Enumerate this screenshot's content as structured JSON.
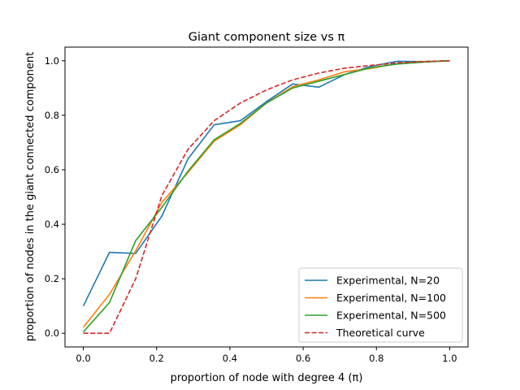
{
  "chart_data": {
    "type": "line",
    "title": "Giant component size vs π",
    "xlabel": "proportion of node with degree 4 (π)",
    "ylabel": "proportion of nodes in the giant connected component",
    "xlim": [
      -0.05,
      1.05
    ],
    "ylim": [
      -0.05,
      1.05
    ],
    "xticks": [
      0.0,
      0.2,
      0.4,
      0.6,
      0.8,
      1.0
    ],
    "yticks": [
      0.0,
      0.2,
      0.4,
      0.6,
      0.8,
      1.0
    ],
    "xtick_labels": [
      "0.0",
      "0.2",
      "0.4",
      "0.6",
      "0.8",
      "1.0"
    ],
    "ytick_labels": [
      "0.0",
      "0.2",
      "0.4",
      "0.6",
      "0.8",
      "1.0"
    ],
    "grid": false,
    "legend_position": "lower-right",
    "x": [
      0.0,
      0.0714,
      0.1429,
      0.2143,
      0.2857,
      0.3571,
      0.4286,
      0.5,
      0.5714,
      0.6429,
      0.7143,
      0.7857,
      0.8571,
      0.9286,
      1.0
    ],
    "series": [
      {
        "name": "Experimental, N=20",
        "color": "#1f77b4",
        "dash": "solid",
        "values": [
          0.1,
          0.297,
          0.293,
          0.43,
          0.64,
          0.765,
          0.78,
          0.85,
          0.915,
          0.903,
          0.95,
          0.98,
          0.998,
          0.997,
          1.0
        ]
      },
      {
        "name": "Experimental, N=100",
        "color": "#ff7f0e",
        "dash": "solid",
        "values": [
          0.022,
          0.143,
          0.303,
          0.48,
          0.59,
          0.705,
          0.765,
          0.845,
          0.905,
          0.93,
          0.96,
          0.972,
          0.99,
          0.997,
          1.0
        ]
      },
      {
        "name": "Experimental, N=500",
        "color": "#2ca02c",
        "dash": "solid",
        "values": [
          0.005,
          0.113,
          0.34,
          0.462,
          0.595,
          0.71,
          0.77,
          0.845,
          0.9,
          0.925,
          0.95,
          0.975,
          0.988,
          0.995,
          1.0
        ]
      },
      {
        "name": "Theoretical curve",
        "color": "#d62728",
        "dash": "dashed",
        "values": [
          0.0,
          0.0,
          0.2,
          0.505,
          0.675,
          0.78,
          0.845,
          0.893,
          0.93,
          0.955,
          0.973,
          0.983,
          0.992,
          0.997,
          1.0
        ]
      }
    ]
  }
}
